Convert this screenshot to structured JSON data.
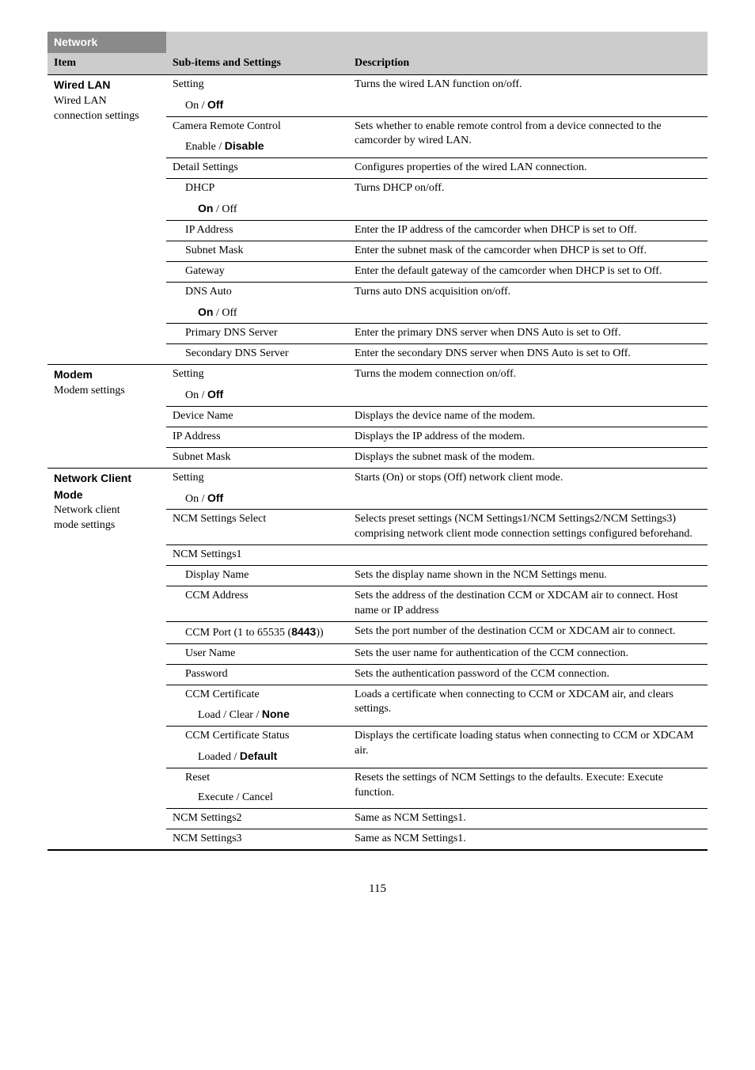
{
  "pageNumber": "115",
  "section": "Network",
  "headers": {
    "item": "Item",
    "sub": "Sub-items and Settings",
    "desc": "Description"
  },
  "wiredLan": {
    "title": "Wired LAN",
    "subtitle1": "Wired LAN",
    "subtitle2": "connection settings",
    "setting": {
      "label": "Setting",
      "opt": "On / ",
      "optBold": "Off",
      "desc": "Turns the wired LAN function on/off."
    },
    "camera": {
      "label": "Camera Remote Control",
      "opt": "Enable / ",
      "optBold": "Disable",
      "desc": "Sets whether to enable remote control from a device connected to the camcorder by wired LAN."
    },
    "detail": {
      "label": "Detail Settings",
      "desc": "Configures properties of the wired LAN connection."
    },
    "dhcp": {
      "label": "DHCP",
      "optBold": "On",
      "opt": " / Off",
      "desc": "Turns DHCP on/off."
    },
    "ip": {
      "label": "IP Address",
      "desc": "Enter the IP address of the camcorder when DHCP is set to Off."
    },
    "subnet": {
      "label": "Subnet Mask",
      "desc": "Enter the subnet mask of the camcorder when DHCP is set to Off."
    },
    "gateway": {
      "label": "Gateway",
      "desc": "Enter the default gateway of the camcorder when DHCP is set to Off."
    },
    "dnsAuto": {
      "label": "DNS Auto",
      "optBold": "On",
      "opt": " / Off",
      "desc": "Turns auto DNS acquisition on/off."
    },
    "primaryDns": {
      "label": "Primary DNS Server",
      "desc": "Enter the primary DNS server when DNS Auto is set to Off."
    },
    "secondaryDns": {
      "label": "Secondary DNS Server",
      "desc": "Enter the secondary DNS server when DNS Auto is set to Off."
    }
  },
  "modem": {
    "title": "Modem",
    "subtitle": "Modem settings",
    "setting": {
      "label": "Setting",
      "opt": "On / ",
      "optBold": "Off",
      "desc": "Turns the modem connection on/off."
    },
    "device": {
      "label": "Device Name",
      "desc": "Displays the device name of the modem."
    },
    "ip": {
      "label": "IP Address",
      "desc": "Displays the IP address of the modem."
    },
    "subnet": {
      "label": "Subnet Mask",
      "desc": "Displays the subnet mask of the modem."
    }
  },
  "ncm": {
    "title": "Network Client Mode",
    "subtitle1": "Network client",
    "subtitle2": "mode settings",
    "setting": {
      "label": "Setting",
      "opt": "On / ",
      "optBold": "Off",
      "desc": "Starts (On) or stops (Off) network client mode."
    },
    "select": {
      "label": "NCM Settings Select",
      "desc": "Selects preset settings (NCM Settings1/NCM Settings2/NCM Settings3) comprising network client mode connection settings configured beforehand."
    },
    "s1": {
      "label": "NCM Settings1"
    },
    "display": {
      "label": "Display Name",
      "desc": "Sets the display name shown in the NCM Settings menu."
    },
    "ccmAddr": {
      "label": "CCM Address",
      "desc": "Sets the address of the destination CCM or XDCAM air to connect. Host name or IP address"
    },
    "ccmPort": {
      "label1": "CCM Port (1 to 65535 (",
      "labelBold": "8443",
      "label2": "))",
      "desc": "Sets the port number of the destination CCM or XDCAM air to connect."
    },
    "user": {
      "label": "User Name",
      "desc": "Sets the user name for authentication of the CCM connection."
    },
    "pass": {
      "label": "Password",
      "desc": "Sets the authentication password of the CCM connection."
    },
    "ccmCert": {
      "label": "CCM Certificate",
      "opt": "Load / Clear / ",
      "optBold": "None",
      "desc": "Loads a certificate when connecting to CCM or XDCAM air, and clears settings."
    },
    "ccmCertStatus": {
      "label": "CCM Certificate Status",
      "opt": "Loaded / ",
      "optBold": "Default",
      "desc": "Displays the certificate loading status when connecting to CCM or XDCAM air."
    },
    "reset": {
      "label": "Reset",
      "opt": "Execute / Cancel",
      "desc": "Resets the settings of NCM Settings to the defaults. Execute: Execute function."
    },
    "s2": {
      "label": "NCM Settings2",
      "desc": "Same as NCM Settings1."
    },
    "s3": {
      "label": "NCM Settings3",
      "desc": "Same as NCM Settings1."
    }
  }
}
